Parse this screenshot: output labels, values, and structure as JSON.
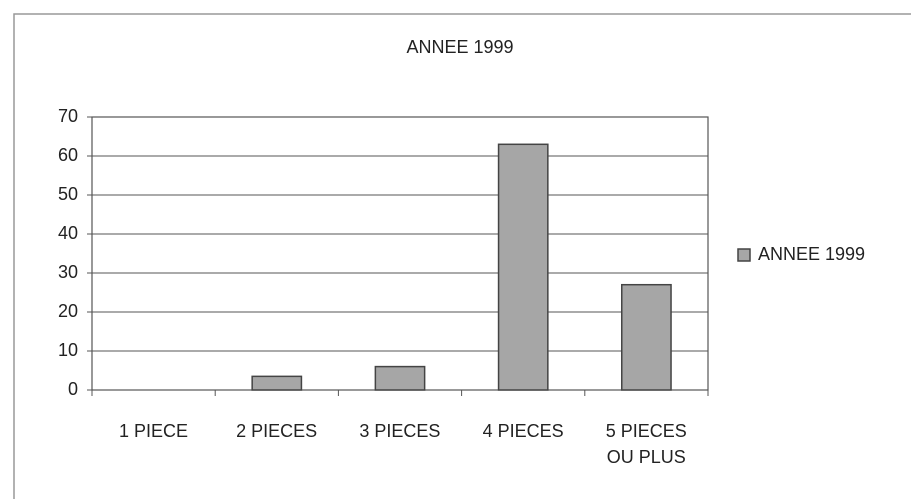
{
  "chart_data": {
    "type": "bar",
    "title": "ANNEE 1999",
    "categories": [
      "1 PIECE",
      "2 PIECES",
      "3 PIECES",
      "4 PIECES",
      "5 PIECES\nOU PLUS"
    ],
    "series": [
      {
        "name": "ANNEE 1999",
        "color": "#a6a6a6",
        "values": [
          0,
          3.5,
          6,
          63,
          27
        ]
      }
    ],
    "ylim": [
      0,
      70
    ],
    "yticks": [
      0,
      10,
      20,
      30,
      40,
      50,
      60,
      70
    ],
    "grid": true,
    "legend": "right"
  }
}
